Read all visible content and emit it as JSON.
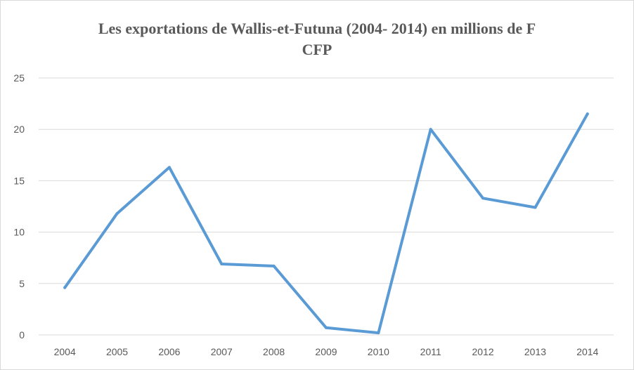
{
  "chart_data": {
    "type": "line",
    "title_lines": [
      "Les exportations de Wallis-et-Futuna (2004- 2014) en millions de F",
      "CFP"
    ],
    "categories": [
      "2004",
      "2005",
      "2006",
      "2007",
      "2008",
      "2009",
      "2010",
      "2011",
      "2012",
      "2013",
      "2014"
    ],
    "series": [
      {
        "values": [
          4.6,
          11.8,
          16.3,
          6.9,
          6.7,
          0.7,
          0.2,
          20.0,
          13.3,
          12.4,
          21.5
        ],
        "color": "#5b9bd5"
      }
    ],
    "ylim": [
      0,
      25
    ],
    "yticks": [
      0,
      5,
      10,
      15,
      20,
      25
    ],
    "grid": true,
    "legend": false,
    "gridline_color": "#d9d9d9",
    "text_color": "#595959"
  }
}
